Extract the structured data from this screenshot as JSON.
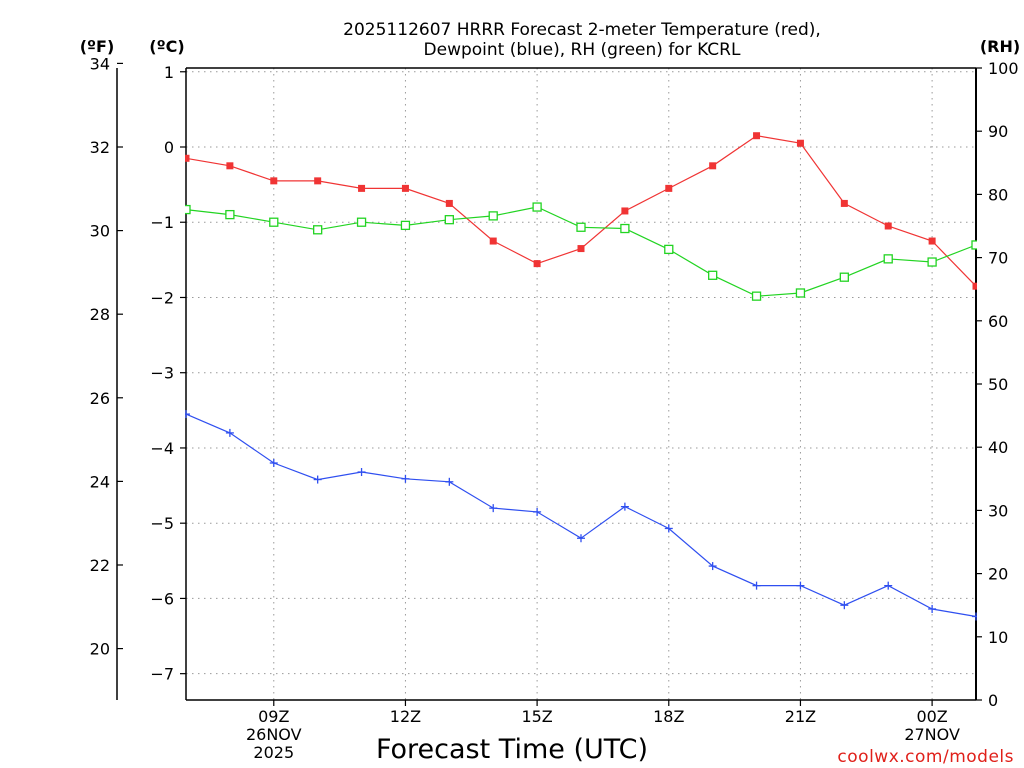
{
  "chart_data": {
    "type": "line",
    "title_line1": "2025112607 HRRR Forecast 2-meter Temperature (red),",
    "title_line2": "Dewpoint (blue), RH (green) for KCRL",
    "xlabel": "Forecast Time (UTC)",
    "credit": "coolwx.com/models",
    "units": {
      "fahrenheit": "(ºF)",
      "celsius": "(ºC)",
      "rh": "(RH)"
    },
    "x_hours": [
      7,
      8,
      9,
      10,
      11,
      12,
      13,
      14,
      15,
      16,
      17,
      18,
      19,
      20,
      21,
      22,
      23,
      24,
      25
    ],
    "xlim_hours": [
      7,
      25
    ],
    "x_ticks": [
      {
        "hour": 9,
        "lines": [
          "09Z",
          "26NOV",
          "2025"
        ]
      },
      {
        "hour": 12,
        "lines": [
          "12Z"
        ]
      },
      {
        "hour": 15,
        "lines": [
          "15Z"
        ]
      },
      {
        "hour": 18,
        "lines": [
          "18Z"
        ]
      },
      {
        "hour": 21,
        "lines": [
          "21Z"
        ]
      },
      {
        "hour": 24,
        "lines": [
          "00Z",
          "27NOV"
        ]
      }
    ],
    "celsius_axis": {
      "ylim": [
        -7.35,
        1.05
      ],
      "ticks": [
        "1",
        "0",
        "−1",
        "−2",
        "−3",
        "−4",
        "−5",
        "−6",
        "−7"
      ]
    },
    "fahrenheit_axis": {
      "ticks": [
        "34",
        "32",
        "30",
        "28",
        "26",
        "24",
        "22",
        "20"
      ]
    },
    "rh_axis": {
      "ylim": [
        0,
        100
      ],
      "ticks": [
        "100",
        "90",
        "80",
        "70",
        "60",
        "50",
        "40",
        "30",
        "20",
        "10",
        "0"
      ]
    },
    "series": [
      {
        "name": "Temperature (°C)",
        "axis": "celsius",
        "color": "#f03434",
        "marker": "filled-square",
        "values": [
          -0.15,
          -0.25,
          -0.45,
          -0.45,
          -0.55,
          -0.55,
          -0.75,
          -1.25,
          -1.55,
          -1.35,
          -0.85,
          -0.55,
          -0.25,
          0.15,
          0.05,
          -0.75,
          -1.05,
          -1.25,
          -1.85
        ]
      },
      {
        "name": "Dewpoint (°C)",
        "axis": "celsius",
        "color": "#2f4ff0",
        "marker": "plus",
        "values": [
          -3.55,
          -3.8,
          -4.2,
          -4.42,
          -4.32,
          -4.41,
          -4.45,
          -4.8,
          -4.85,
          -5.2,
          -4.78,
          -5.07,
          -5.57,
          -5.83,
          -5.83,
          -6.09,
          -5.83,
          -6.14,
          -6.24
        ]
      },
      {
        "name": "RH (%)",
        "axis": "rh",
        "color": "#22d422",
        "marker": "open-square",
        "values": [
          77.6,
          76.8,
          75.6,
          74.4,
          75.6,
          75.1,
          76,
          76.6,
          78,
          74.8,
          74.6,
          71.3,
          67.2,
          63.9,
          64.4,
          66.9,
          69.8,
          69.3,
          72
        ]
      }
    ]
  }
}
